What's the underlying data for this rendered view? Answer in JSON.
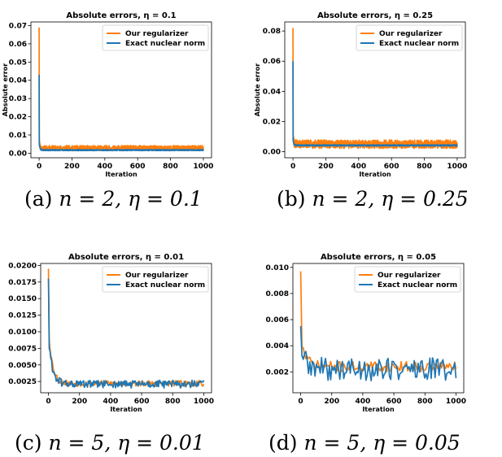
{
  "captions": [
    {
      "label": "(a)",
      "math": "n = 2, η = 0.1"
    },
    {
      "label": "(b)",
      "math": "n = 2, η = 0.25"
    },
    {
      "label": "(c)",
      "math": "n = 5, η = 0.01"
    },
    {
      "label": "(d)",
      "math": "n = 5, η = 0.05"
    }
  ],
  "colors": {
    "orange": "#ff7f0e",
    "blue": "#1f77b4"
  },
  "chart_data": [
    {
      "type": "line",
      "title": "Absolute errors, η = 0.1",
      "xlabel": "Iteration",
      "ylabel": "Absolute error",
      "xlim": [
        -50,
        1050
      ],
      "ylim": [
        -0.0025,
        0.072
      ],
      "xticks": [
        0,
        200,
        400,
        600,
        800,
        1000
      ],
      "xtick_labels": [
        "0",
        "200",
        "400",
        "600",
        "800",
        "1000"
      ],
      "yticks": [
        0,
        0.01,
        0.02,
        0.03,
        0.04,
        0.05,
        0.06,
        0.07
      ],
      "ytick_labels": [
        "0.00",
        "0.01",
        "0.02",
        "0.03",
        "0.04",
        "0.05",
        "0.06",
        "0.07"
      ],
      "legend": "top-right",
      "series": [
        {
          "name": "Our regularizer",
          "color": "#ff7f0e",
          "n": 1000,
          "start": 0.069,
          "start2": 0.012,
          "decay": 3,
          "floor": 0.0028,
          "noise": 0.0014,
          "seed": 11
        },
        {
          "name": "Exact nuclear norm",
          "color": "#1f77b4",
          "n": 1000,
          "start": 0.043,
          "start2": 0.006,
          "decay": 4,
          "floor": 0.0017,
          "noise": 0.0003,
          "seed": 23
        }
      ]
    },
    {
      "type": "line",
      "title": "Absolute errors, η = 0.25",
      "xlabel": "Iteration",
      "ylabel": "Absolute error",
      "xlim": [
        -50,
        1050
      ],
      "ylim": [
        -0.004,
        0.086
      ],
      "xticks": [
        0,
        200,
        400,
        600,
        800,
        1000
      ],
      "xtick_labels": [
        "0",
        "200",
        "400",
        "600",
        "800",
        "1000"
      ],
      "yticks": [
        0,
        0.02,
        0.04,
        0.06,
        0.08
      ],
      "ytick_labels": [
        "0.00",
        "0.02",
        "0.04",
        "0.06",
        "0.08"
      ],
      "legend": "top-right",
      "series": [
        {
          "name": "Our regularizer",
          "color": "#ff7f0e",
          "n": 1000,
          "start": 0.082,
          "start2": 0.016,
          "decay": 3,
          "floor": 0.005,
          "noise": 0.0028,
          "seed": 31
        },
        {
          "name": "Exact nuclear norm",
          "color": "#1f77b4",
          "n": 1000,
          "start": 0.06,
          "start2": 0.009,
          "decay": 4,
          "floor": 0.0042,
          "noise": 0.0004,
          "seed": 47
        }
      ]
    },
    {
      "type": "line",
      "title": "Absolute errors, η = 0.01",
      "xlabel": "Iteration",
      "ylabel": "",
      "xlim": [
        -50,
        1050
      ],
      "ylim": [
        0.0008,
        0.0203
      ],
      "xticks": [
        0,
        200,
        400,
        600,
        800,
        1000
      ],
      "xtick_labels": [
        "0",
        "200",
        "400",
        "600",
        "800",
        "1000"
      ],
      "yticks": [
        0.0025,
        0.005,
        0.0075,
        0.01,
        0.0125,
        0.015,
        0.0175,
        0.02
      ],
      "ytick_labels": [
        "0.0025",
        "0.0050",
        "0.0075",
        "0.0100",
        "0.0125",
        "0.0150",
        "0.0175",
        "0.0200"
      ],
      "legend": "top-right",
      "series": [
        {
          "name": "Our regularizer",
          "color": "#ff7f0e",
          "n": 200,
          "start": 0.0195,
          "start2": 0.0105,
          "decay": 5,
          "floor": 0.0022,
          "noise": 0.00045,
          "seed": 53
        },
        {
          "name": "Exact nuclear norm",
          "color": "#1f77b4",
          "n": 200,
          "start": 0.018,
          "start2": 0.009,
          "decay": 5,
          "floor": 0.0021,
          "noise": 0.0006,
          "seed": 61
        }
      ]
    },
    {
      "type": "line",
      "title": "Absolute errors, η = 0.05",
      "xlabel": "Iteration",
      "ylabel": "",
      "xlim": [
        -50,
        1050
      ],
      "ylim": [
        0.0004,
        0.0103
      ],
      "xticks": [
        0,
        200,
        400,
        600,
        800,
        1000
      ],
      "xtick_labels": [
        "0",
        "200",
        "400",
        "600",
        "800",
        "1000"
      ],
      "yticks": [
        0.002,
        0.004,
        0.006,
        0.008,
        0.01
      ],
      "ytick_labels": [
        "0.002",
        "0.004",
        "0.006",
        "0.008",
        "0.010"
      ],
      "legend": "top-right",
      "series": [
        {
          "name": "Our regularizer",
          "color": "#ff7f0e",
          "n": 120,
          "start": 0.0097,
          "start2": 0.0045,
          "decay": 4,
          "floor": 0.0024,
          "noise": 0.0004,
          "seed": 71
        },
        {
          "name": "Exact nuclear norm",
          "color": "#1f77b4",
          "n": 120,
          "start": 0.0055,
          "start2": 0.0042,
          "decay": 3,
          "floor": 0.0022,
          "noise": 0.0009,
          "seed": 89
        }
      ]
    }
  ]
}
